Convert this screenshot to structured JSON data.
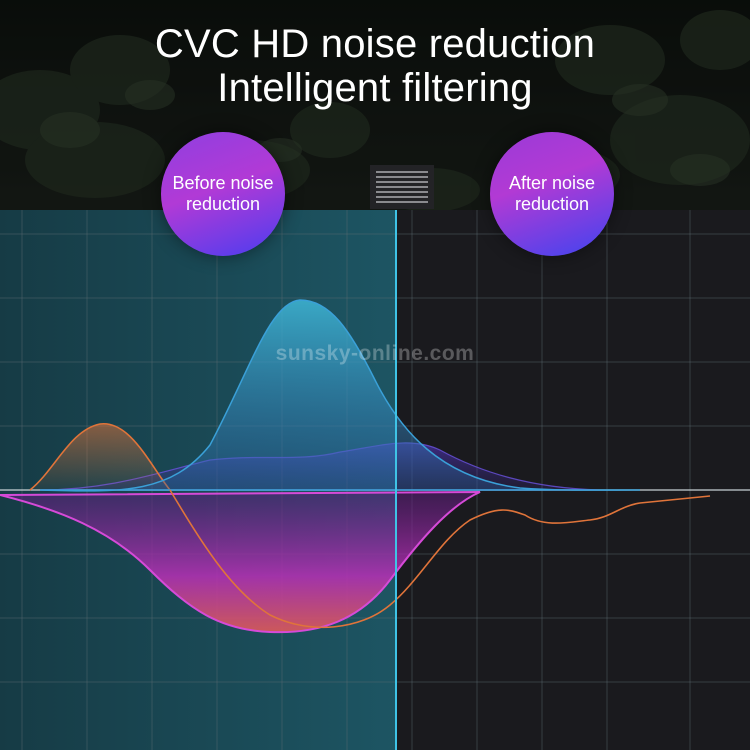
{
  "title": {
    "line1": "CVC HD noise reduction",
    "line2": "Intelligent filtering"
  },
  "badges": {
    "before": "Before noise reduction",
    "after": "After noise reduction"
  },
  "watermark": "sunsky-online.com",
  "colors": {
    "background": "#1a1a1e",
    "highlight_panel": "#1c4a55",
    "divider_line": "#3fc3e6",
    "blue_wave": "#3aa0d8",
    "orange_wave": "#e0743a",
    "magenta_wave": "#d64ad8",
    "badge_purple": "#a93ad8",
    "badge_blue": "#4a3df0"
  }
}
